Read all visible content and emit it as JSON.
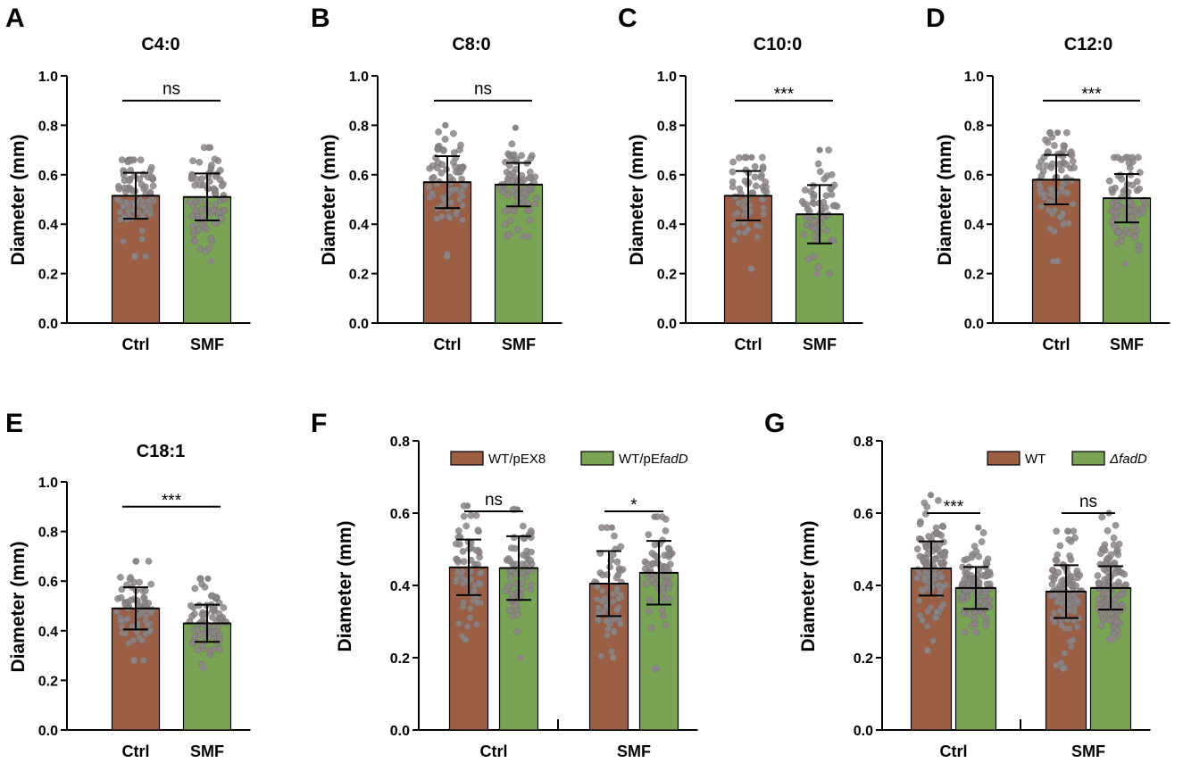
{
  "figure": {
    "colors": {
      "brown": "#9b5f45",
      "green": "#79a455",
      "dot": "#8c8585",
      "axis": "#000000"
    }
  },
  "chart_data": [
    {
      "id": "A",
      "panel_letter": "A",
      "type": "bar",
      "title": "C4:0",
      "ylabel": "Diameter (mm)",
      "ylim": [
        0,
        1.0
      ],
      "yticks": [
        "0.0",
        "0.2",
        "0.4",
        "0.6",
        "0.8",
        "1.0"
      ],
      "categories": [
        "Ctrl",
        "SMF"
      ],
      "values": [
        0.515,
        0.51
      ],
      "sd": [
        0.093,
        0.095
      ],
      "data_range": [
        [
          0.27,
          0.66
        ],
        [
          0.25,
          0.71
        ]
      ],
      "n_points": 80,
      "comparisons": [
        {
          "between": [
            0,
            1
          ],
          "label": "ns"
        }
      ]
    },
    {
      "id": "B",
      "panel_letter": "B",
      "type": "bar",
      "title": "C8:0",
      "ylabel": "Diameter (mm)",
      "ylim": [
        0,
        1.0
      ],
      "yticks": [
        "0.0",
        "0.2",
        "0.4",
        "0.6",
        "0.8",
        "1.0"
      ],
      "categories": [
        "Ctrl",
        "SMF"
      ],
      "values": [
        0.57,
        0.56
      ],
      "sd": [
        0.105,
        0.088
      ],
      "data_range": [
        [
          0.27,
          0.8
        ],
        [
          0.35,
          0.79
        ]
      ],
      "n_points": 70,
      "comparisons": [
        {
          "between": [
            0,
            1
          ],
          "label": "ns"
        }
      ]
    },
    {
      "id": "C",
      "panel_letter": "C",
      "type": "bar",
      "title": "C10:0",
      "ylabel": "Diameter (mm)",
      "ylim": [
        0,
        1.0
      ],
      "yticks": [
        "0.0",
        "0.2",
        "0.4",
        "0.6",
        "0.8",
        "1.0"
      ],
      "categories": [
        "Ctrl",
        "SMF"
      ],
      "values": [
        0.515,
        0.44
      ],
      "sd": [
        0.1,
        0.118
      ],
      "data_range": [
        [
          0.22,
          0.67
        ],
        [
          0.2,
          0.7
        ]
      ],
      "n_points": 55,
      "comparisons": [
        {
          "between": [
            0,
            1
          ],
          "label": "***"
        }
      ]
    },
    {
      "id": "D",
      "panel_letter": "D",
      "type": "bar",
      "title": "C12:0",
      "ylabel": "Diameter (mm)",
      "ylim": [
        0,
        1.0
      ],
      "yticks": [
        "0.0",
        "0.2",
        "0.4",
        "0.6",
        "0.8",
        "1.0"
      ],
      "categories": [
        "Ctrl",
        "SMF"
      ],
      "values": [
        0.58,
        0.505
      ],
      "sd": [
        0.1,
        0.098
      ],
      "data_range": [
        [
          0.25,
          0.77
        ],
        [
          0.24,
          0.67
        ]
      ],
      "n_points": 75,
      "comparisons": [
        {
          "between": [
            0,
            1
          ],
          "label": "***"
        }
      ]
    },
    {
      "id": "E",
      "panel_letter": "E",
      "type": "bar",
      "title": "C18:1",
      "ylabel": "Diameter (mm)",
      "ylim": [
        0,
        1.0
      ],
      "yticks": [
        "0.0",
        "0.2",
        "0.4",
        "0.6",
        "0.8",
        "1.0"
      ],
      "categories": [
        "Ctrl",
        "SMF"
      ],
      "values": [
        0.49,
        0.43
      ],
      "sd": [
        0.085,
        0.075
      ],
      "data_range": [
        [
          0.28,
          0.68
        ],
        [
          0.25,
          0.61
        ]
      ],
      "n_points": 75,
      "comparisons": [
        {
          "between": [
            0,
            1
          ],
          "label": "***"
        }
      ]
    },
    {
      "id": "F",
      "panel_letter": "F",
      "type": "bar",
      "title": "",
      "ylabel": "Diameter (mm)",
      "ylim": [
        0,
        0.8
      ],
      "yticks": [
        "0.0",
        "0.2",
        "0.4",
        "0.6",
        "0.8"
      ],
      "categories": [
        "Ctrl",
        "SMF"
      ],
      "legend_position": "top-right",
      "n_points": 60,
      "series": [
        {
          "name": "WT/pEX8",
          "name_italic": "",
          "values": [
            0.45,
            0.405
          ],
          "sd": [
            0.077,
            0.09
          ],
          "data_range": [
            [
              0.25,
              0.62
            ],
            [
              0.2,
              0.56
            ]
          ]
        },
        {
          "name": "WT/pE",
          "name_italic": "fadD",
          "values": [
            0.448,
            0.435
          ],
          "sd": [
            0.088,
            0.088
          ],
          "data_range": [
            [
              0.2,
              0.61
            ],
            [
              0.17,
              0.59
            ]
          ]
        }
      ],
      "comparisons": [
        {
          "category": 0,
          "label": "ns"
        },
        {
          "category": 1,
          "label": "*"
        }
      ]
    },
    {
      "id": "G",
      "panel_letter": "G",
      "type": "bar",
      "title": "",
      "ylabel": "Diameter (mm)",
      "ylim": [
        0,
        0.8
      ],
      "yticks": [
        "0.0",
        "0.2",
        "0.4",
        "0.6",
        "0.8"
      ],
      "categories": [
        "Ctrl",
        "SMF"
      ],
      "legend_position": "top-right",
      "n_points": 110,
      "series": [
        {
          "name": "WT",
          "name_italic": "",
          "values": [
            0.447,
            0.383
          ],
          "sd": [
            0.075,
            0.073
          ],
          "data_range": [
            [
              0.22,
              0.65
            ],
            [
              0.17,
              0.55
            ]
          ]
        },
        {
          "name": "",
          "name_italic": "ΔfadD",
          "values": [
            0.393,
            0.393
          ],
          "sd": [
            0.058,
            0.06
          ],
          "data_range": [
            [
              0.27,
              0.56
            ],
            [
              0.25,
              0.6
            ]
          ]
        }
      ],
      "comparisons": [
        {
          "category": 0,
          "label": "***"
        },
        {
          "category": 1,
          "label": "ns"
        }
      ]
    }
  ]
}
